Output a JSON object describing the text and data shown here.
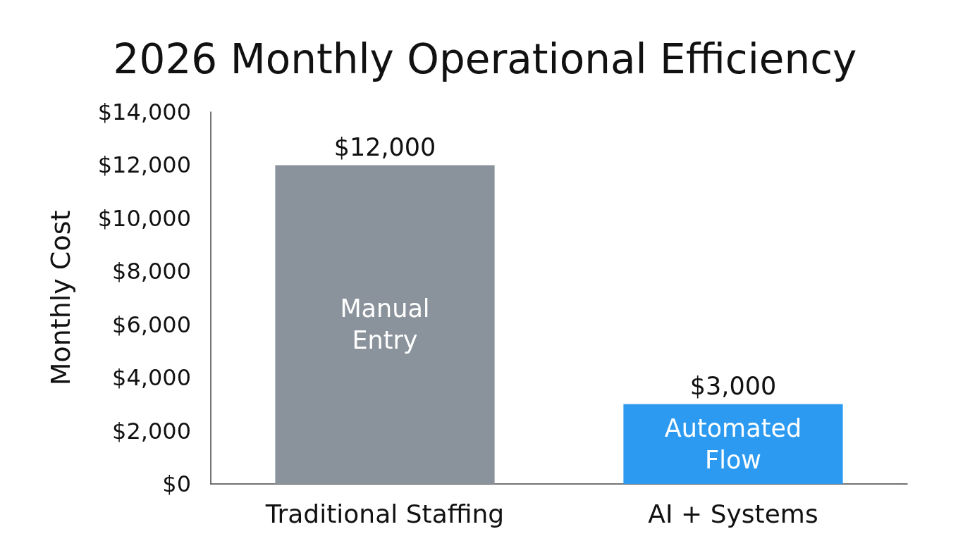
{
  "chart_data": {
    "type": "bar",
    "title": "2026 Monthly Operational Efficiency",
    "ylabel": "Monthly Cost",
    "categories": [
      "Traditional Staffing",
      "AI + Systems"
    ],
    "values": [
      12000,
      3000
    ],
    "colors": [
      "#8a939b",
      "#2b9af0"
    ],
    "value_labels": [
      "$12,000",
      "$3,000"
    ],
    "ylim": [
      0,
      14000
    ],
    "yticks": [
      {
        "value": 0,
        "label": "$0"
      },
      {
        "value": 2000,
        "label": "$2,000"
      },
      {
        "value": 4000,
        "label": "$4,000"
      },
      {
        "value": 6000,
        "label": "$6,000"
      },
      {
        "value": 8000,
        "label": "$8,000"
      },
      {
        "value": 10000,
        "label": "$10,000"
      },
      {
        "value": 12000,
        "label": "$12,000"
      },
      {
        "value": 14000,
        "label": "$14,000"
      }
    ],
    "annotations": [
      "Manual\nEntry",
      "Automated\nFlow"
    ]
  }
}
